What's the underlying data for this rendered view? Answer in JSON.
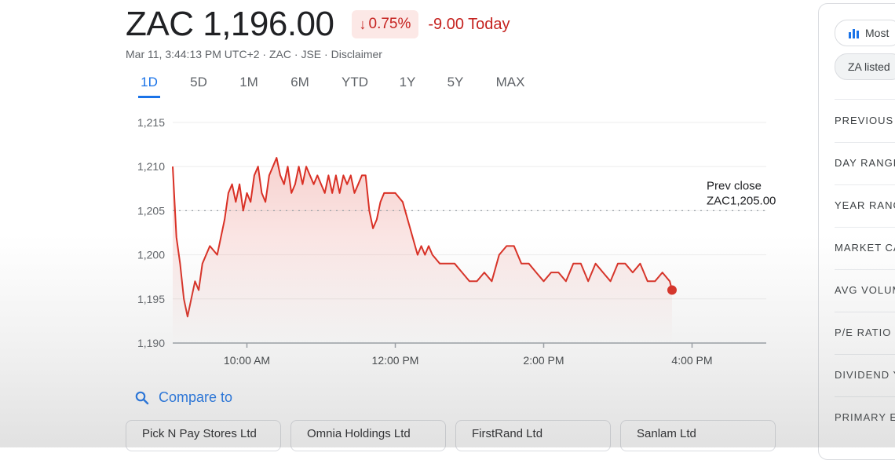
{
  "quote": {
    "price": "ZAC 1,196.00",
    "pct_arrow": "↓",
    "pct_change": "0.75%",
    "change_today": "-9.00 Today",
    "meta_time": "Mar 11, 3:44:13 PM UTC+2",
    "meta_sep": " · ",
    "meta_ticker": "ZAC",
    "meta_exchange": "JSE",
    "meta_disclaimer": "Disclaimer"
  },
  "tabs": [
    "1D",
    "5D",
    "1M",
    "6M",
    "YTD",
    "1Y",
    "5Y",
    "MAX"
  ],
  "active_tab": "1D",
  "colors": {
    "line": "#d93025",
    "fill": "#d93025",
    "accent": "#1a73e8",
    "negative": "#c5221f"
  },
  "chart_data": {
    "type": "line",
    "series": [
      {
        "x": [
          9.0,
          9.05,
          9.1,
          9.15,
          9.2,
          9.25,
          9.3,
          9.35,
          9.4,
          9.5,
          9.6,
          9.65,
          9.7,
          9.75,
          9.8,
          9.85,
          9.9,
          9.95,
          10.0,
          10.05,
          10.1,
          10.15,
          10.2,
          10.25,
          10.3,
          10.35,
          10.4,
          10.45,
          10.5,
          10.55,
          10.6,
          10.65,
          10.7,
          10.75,
          10.8,
          10.85,
          10.9,
          10.95,
          11.0,
          11.05,
          11.1,
          11.15,
          11.2,
          11.25,
          11.3,
          11.35,
          11.4,
          11.45,
          11.5,
          11.55,
          11.6,
          11.65,
          11.7,
          11.75,
          11.8,
          11.85,
          11.9,
          11.95,
          12.0,
          12.1,
          12.2,
          12.3,
          12.35,
          12.4,
          12.45,
          12.5,
          12.6,
          12.7,
          12.8,
          12.9,
          13.0,
          13.1,
          13.2,
          13.3,
          13.4,
          13.5,
          13.6,
          13.7,
          13.8,
          13.9,
          14.0,
          14.1,
          14.2,
          14.3,
          14.4,
          14.5,
          14.6,
          14.7,
          14.8,
          14.9,
          15.0,
          15.1,
          15.2,
          15.3,
          15.4,
          15.5,
          15.6,
          15.7,
          15.73
        ],
        "y": [
          1210,
          1202,
          1199,
          1195,
          1193,
          1195,
          1197,
          1196,
          1199,
          1201,
          1200,
          1202,
          1204,
          1207,
          1208,
          1206,
          1208,
          1205,
          1207,
          1206,
          1209,
          1210,
          1207,
          1206,
          1209,
          1210,
          1211,
          1209,
          1208,
          1210,
          1207,
          1208,
          1210,
          1208,
          1210,
          1209,
          1208,
          1209,
          1208,
          1207,
          1209,
          1207,
          1209,
          1207,
          1209,
          1208,
          1209,
          1207,
          1208,
          1209,
          1209,
          1205,
          1203,
          1204,
          1206,
          1207,
          1207,
          1207,
          1207,
          1206,
          1203,
          1200,
          1201,
          1200,
          1201,
          1200,
          1199,
          1199,
          1199,
          1198,
          1197,
          1197,
          1198,
          1197,
          1200,
          1201,
          1201,
          1199,
          1199,
          1198,
          1197,
          1198,
          1198,
          1197,
          1199,
          1199,
          1197,
          1199,
          1198,
          1197,
          1199,
          1199,
          1198,
          1199,
          1197,
          1197,
          1198,
          1197,
          1196
        ]
      }
    ],
    "x_ticks": [
      {
        "x": 10,
        "label": "10:00 AM"
      },
      {
        "x": 12,
        "label": "12:00 PM"
      },
      {
        "x": 14,
        "label": "2:00 PM"
      },
      {
        "x": 16,
        "label": "4:00 PM"
      }
    ],
    "y_ticks": [
      1190,
      1195,
      1200,
      1205,
      1210,
      1215
    ],
    "y_tick_labels": [
      "1,190",
      "1,195",
      "1,200",
      "1,205",
      "1,210",
      "1,215"
    ],
    "xlim": [
      9.0,
      17.0
    ],
    "ylim": [
      1190,
      1215
    ],
    "reference_line": {
      "value": 1205,
      "label_line1": "Prev close",
      "label_line2": "ZAC1,205.00"
    },
    "last_point": {
      "x": 15.73,
      "y": 1196
    },
    "grid": true
  },
  "compare": {
    "label": "Compare to",
    "icon": "search-icon"
  },
  "compare_chips": [
    "Pick N Pay Stores Ltd",
    "Omnia Holdings Ltd",
    "FirstRand Ltd",
    "Sanlam Ltd"
  ],
  "side_panel": {
    "chips": [
      "Most",
      "ZA listed"
    ],
    "rows": [
      "PREVIOUS",
      "DAY RANGE",
      "YEAR RANG",
      "MARKET CA",
      "AVG VOLUM",
      "P/E RATIO",
      "DIVIDEND Y",
      "PRIMARY E"
    ]
  }
}
